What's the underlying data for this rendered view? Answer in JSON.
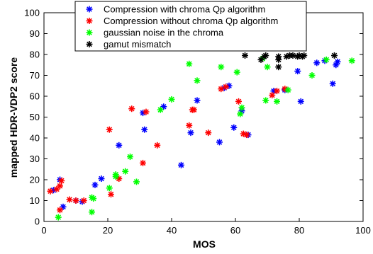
{
  "chart_data": {
    "type": "scatter",
    "title": "",
    "xlabel": "MOS",
    "ylabel": "mapped HDR-VDP2 score",
    "xlim": [
      0,
      100
    ],
    "ylim": [
      0,
      100
    ],
    "xticks": [
      0,
      20,
      40,
      60,
      80,
      100
    ],
    "yticks": [
      0,
      10,
      20,
      30,
      40,
      50,
      60,
      70,
      80,
      90,
      100
    ],
    "grid": false,
    "legend_position": "top-center",
    "marker": "asterisk",
    "series": [
      {
        "name": "Compression with chroma Qp algorithm",
        "color": "#0000ff",
        "points": [
          [
            3,
            15
          ],
          [
            5,
            20
          ],
          [
            6,
            7
          ],
          [
            10,
            10
          ],
          [
            12,
            9.5
          ],
          [
            16,
            17.5
          ],
          [
            18,
            20.5
          ],
          [
            23.5,
            36.5
          ],
          [
            31,
            52
          ],
          [
            31.5,
            44
          ],
          [
            37.5,
            55
          ],
          [
            43,
            27
          ],
          [
            46,
            42.5
          ],
          [
            48,
            58
          ],
          [
            55,
            38
          ],
          [
            56.5,
            64
          ],
          [
            58,
            65
          ],
          [
            59.5,
            45
          ],
          [
            62,
            53
          ],
          [
            64,
            41.5
          ],
          [
            72,
            62.5
          ],
          [
            75.5,
            63
          ],
          [
            79.5,
            72
          ],
          [
            80.5,
            57.5
          ],
          [
            85.5,
            76
          ],
          [
            88,
            77
          ],
          [
            90.5,
            66
          ],
          [
            91.5,
            75
          ],
          [
            92,
            76.5
          ]
        ]
      },
      {
        "name": "Compression without chroma Qp algorithm",
        "color": "#ff0000",
        "points": [
          [
            2,
            14.5
          ],
          [
            4,
            15.5
          ],
          [
            5,
            5.5
          ],
          [
            5,
            17
          ],
          [
            5.5,
            19.5
          ],
          [
            8,
            10.5
          ],
          [
            10,
            10
          ],
          [
            12.5,
            10
          ],
          [
            20.5,
            44
          ],
          [
            21,
            13
          ],
          [
            23.5,
            20.5
          ],
          [
            27.5,
            54
          ],
          [
            31,
            28
          ],
          [
            32,
            52.5
          ],
          [
            35.5,
            36.5
          ],
          [
            45.5,
            46
          ],
          [
            46.5,
            53.5
          ],
          [
            47,
            53.5
          ],
          [
            51.5,
            42.5
          ],
          [
            55.5,
            63.5
          ],
          [
            57,
            64.5
          ],
          [
            61,
            57.5
          ],
          [
            62.5,
            42
          ],
          [
            63.5,
            41.5
          ],
          [
            71.5,
            60.5
          ],
          [
            73,
            62.5
          ],
          [
            75.5,
            63.5
          ]
        ]
      },
      {
        "name": "gaussian noise in the chroma",
        "color": "#00ff00",
        "points": [
          [
            4.5,
            2
          ],
          [
            15,
            4.5
          ],
          [
            15,
            11.5
          ],
          [
            15.5,
            11
          ],
          [
            20.5,
            16
          ],
          [
            22.5,
            22.5
          ],
          [
            22.5,
            21.5
          ],
          [
            25.5,
            24
          ],
          [
            27,
            31
          ],
          [
            29,
            19
          ],
          [
            36.5,
            53.5
          ],
          [
            40,
            58.5
          ],
          [
            45.5,
            75.5
          ],
          [
            48,
            67.5
          ],
          [
            55.5,
            74
          ],
          [
            60.5,
            71.5
          ],
          [
            61.5,
            51.5
          ],
          [
            62,
            54.5
          ],
          [
            68.5,
            78
          ],
          [
            69.5,
            58
          ],
          [
            70,
            74
          ],
          [
            73,
            57.5
          ],
          [
            76.5,
            63
          ],
          [
            84,
            70
          ],
          [
            88.5,
            77.5
          ],
          [
            96.5,
            77
          ]
        ]
      },
      {
        "name": "gamut mismatch",
        "color": "#000000",
        "points": [
          [
            63,
            79.5
          ],
          [
            68,
            77.5
          ],
          [
            69,
            79
          ],
          [
            69.5,
            79.5
          ],
          [
            73.5,
            79
          ],
          [
            73.5,
            77.5
          ],
          [
            73.5,
            74
          ],
          [
            76,
            79
          ],
          [
            77,
            79.5
          ],
          [
            78,
            79.5
          ],
          [
            79.5,
            79
          ],
          [
            80,
            79.5
          ],
          [
            81,
            79
          ],
          [
            81.5,
            79.5
          ],
          [
            91,
            79.5
          ]
        ]
      }
    ]
  }
}
